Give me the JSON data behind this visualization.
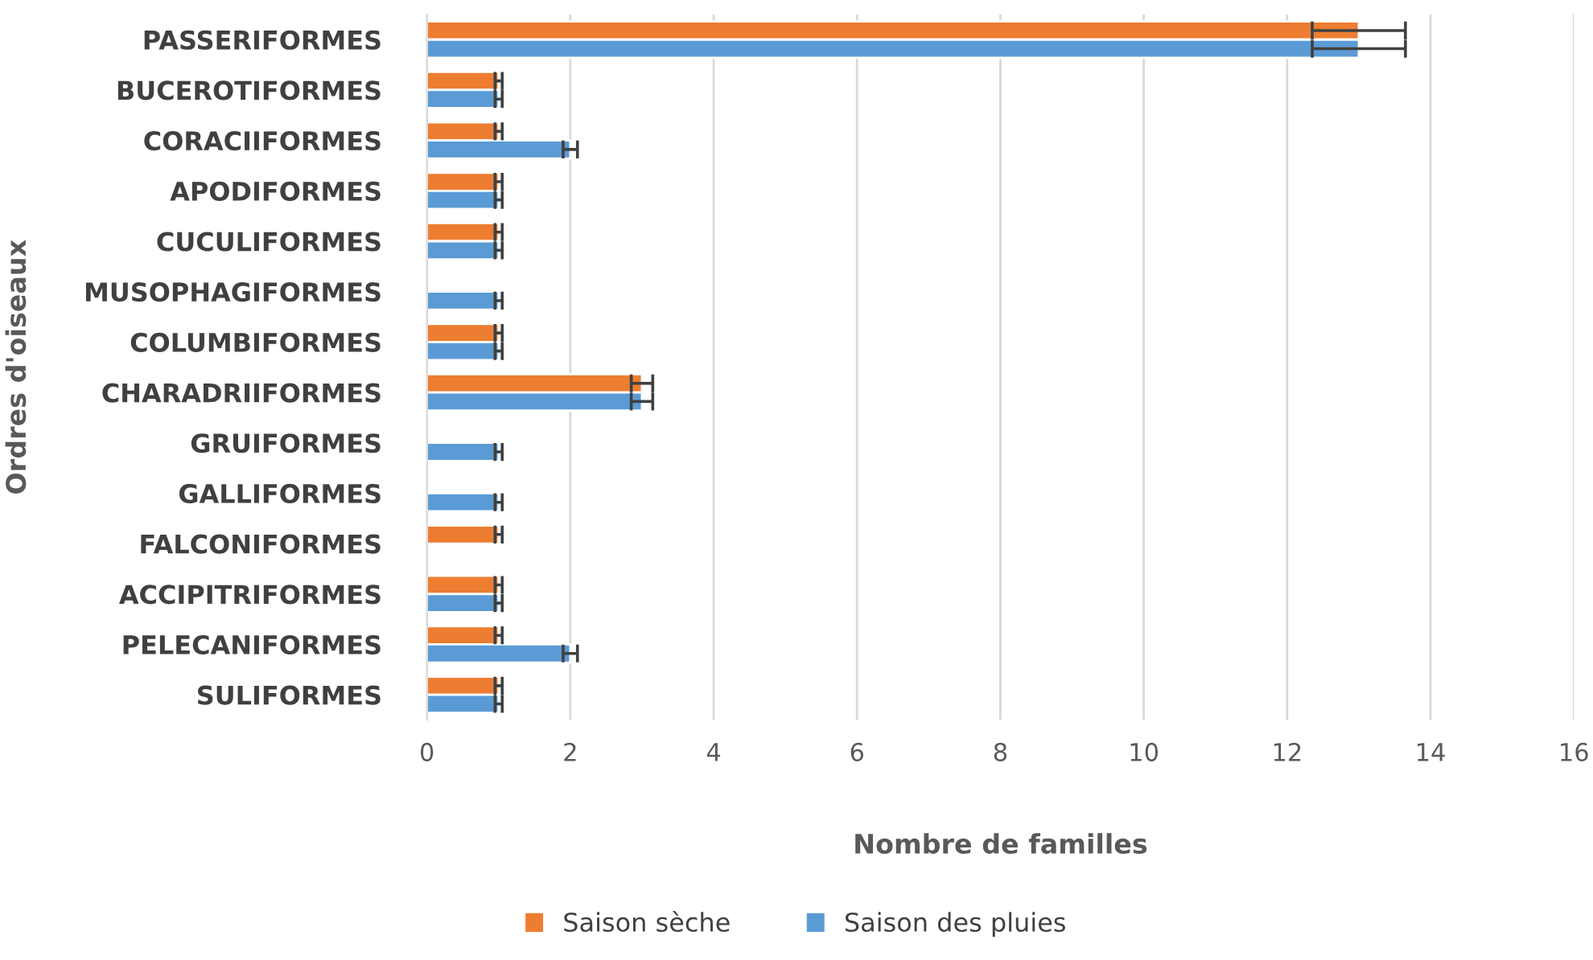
{
  "chart_data": {
    "type": "bar",
    "orientation": "horizontal",
    "xlabel": "Nombre de familles",
    "ylabel": "Ordres d'oiseaux",
    "categories": [
      "PASSERIFORMES",
      "BUCEROTIFORMES",
      "CORACIIFORMES",
      "APODIFORMES",
      "CUCULIFORMES",
      "MUSOPHAGIFORMES",
      "COLUMBIFORMES",
      "CHARADRIIFORMES",
      "GRUIFORMES",
      "GALLIFORMES",
      "FALCONIFORMES",
      "ACCIPITRIFORMES",
      "PELECANIFORMES",
      "SULIFORMES"
    ],
    "series": [
      {
        "name": "Saison sèche",
        "color": "#ed7d31",
        "values": [
          13,
          1,
          1,
          1,
          1,
          null,
          1,
          3,
          null,
          null,
          1,
          1,
          1,
          1
        ],
        "errors": [
          0.65,
          0.05,
          0.05,
          0.05,
          0.05,
          null,
          0.05,
          0.15,
          null,
          null,
          0.05,
          0.05,
          0.05,
          0.05
        ]
      },
      {
        "name": "Saison des pluies",
        "color": "#5b9bd5",
        "values": [
          13,
          1,
          2,
          1,
          1,
          1,
          1,
          3,
          1,
          1,
          null,
          1,
          2,
          1
        ],
        "errors": [
          0.65,
          0.05,
          0.1,
          0.05,
          0.05,
          0.05,
          0.05,
          0.15,
          0.05,
          0.05,
          null,
          0.05,
          0.1,
          0.05
        ]
      }
    ],
    "xlim": [
      0,
      16
    ],
    "xticks": [
      0,
      2,
      4,
      6,
      8,
      10,
      12,
      14,
      16
    ],
    "grid": "x",
    "legend": "bottom"
  }
}
